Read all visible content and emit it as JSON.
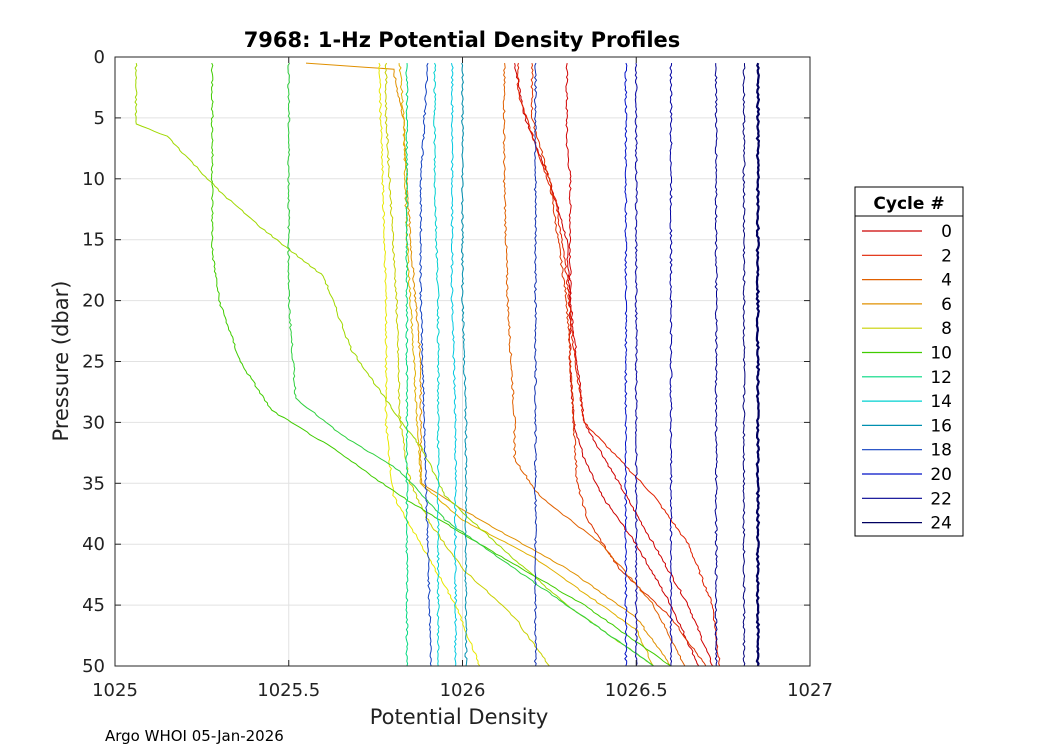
{
  "chart_data": {
    "type": "line",
    "title": "7968: 1-Hz Potential Density Profiles",
    "xlabel": "Potential Density",
    "ylabel": "Pressure (dbar)",
    "xlim": [
      1025,
      1027
    ],
    "ylim": [
      0,
      50
    ],
    "y_reversed": true,
    "grid": true,
    "xticks": [
      "1025",
      "1025.5",
      "1026",
      "1026.5",
      "1027"
    ],
    "yticks": [
      "0",
      "5",
      "10",
      "15",
      "20",
      "25",
      "30",
      "35",
      "40",
      "45",
      "50"
    ],
    "legend": {
      "title": "Cycle #",
      "placement": "right",
      "labels": [
        "0",
        "2",
        "4",
        "6",
        "8",
        "10",
        "12",
        "14",
        "16",
        "18",
        "20",
        "22",
        "24"
      ]
    },
    "series": [
      {
        "name": "0",
        "color": "#cc0000",
        "pressure": [
          0.5,
          5,
          10,
          15,
          20,
          25,
          30,
          33,
          36,
          40,
          45,
          50
        ],
        "density": [
          1026.15,
          1026.18,
          1026.25,
          1026.3,
          1026.31,
          1026.31,
          1026.32,
          1026.35,
          1026.4,
          1026.5,
          1026.6,
          1026.68
        ]
      },
      {
        "name": "",
        "color": "#d00000",
        "pressure": [
          0.5,
          3,
          7,
          10,
          15,
          20,
          25,
          30,
          35,
          40,
          45,
          50
        ],
        "density": [
          1026.3,
          1026.3,
          1026.3,
          1026.31,
          1026.31,
          1026.31,
          1026.33,
          1026.35,
          1026.45,
          1026.55,
          1026.65,
          1026.72
        ]
      },
      {
        "name": "2",
        "color": "#e02000",
        "pressure": [
          0.5,
          3,
          8,
          12,
          18,
          24,
          30,
          33,
          36,
          40,
          45,
          50
        ],
        "density": [
          1026.16,
          1026.16,
          1026.22,
          1026.27,
          1026.3,
          1026.32,
          1026.35,
          1026.45,
          1026.55,
          1026.65,
          1026.72,
          1026.74
        ]
      },
      {
        "name": "",
        "color": "#dd3300",
        "pressure": [
          0.5,
          5,
          10,
          20,
          30,
          35,
          38,
          42,
          46,
          50
        ],
        "density": [
          1026.2,
          1026.2,
          1026.25,
          1026.3,
          1026.32,
          1026.33,
          1026.36,
          1026.45,
          1026.6,
          1026.7
        ]
      },
      {
        "name": "4",
        "color": "#e06000",
        "pressure": [
          0.5,
          10,
          20,
          30,
          33,
          36,
          40,
          45,
          50
        ],
        "density": [
          1026.12,
          1026.12,
          1026.13,
          1026.15,
          1026.15,
          1026.22,
          1026.4,
          1026.55,
          1026.64
        ]
      },
      {
        "name": "6",
        "color": "#e09000",
        "pressure": [
          0.5,
          1,
          5,
          15,
          25,
          35,
          38,
          42,
          46,
          50
        ],
        "density": [
          1025.55,
          1025.8,
          1025.83,
          1025.85,
          1025.88,
          1025.88,
          1026.05,
          1026.3,
          1026.5,
          1026.6
        ]
      },
      {
        "name": "",
        "color": "#e0b000",
        "pressure": [
          0.5,
          5,
          15,
          25,
          35,
          38,
          41,
          44,
          47,
          50
        ],
        "density": [
          1025.82,
          1025.83,
          1025.84,
          1025.86,
          1025.88,
          1026.0,
          1026.2,
          1026.35,
          1026.5,
          1026.55
        ]
      },
      {
        "name": "8",
        "color": "#c8d000",
        "pressure": [
          0.5,
          5,
          10,
          15,
          20,
          30,
          35,
          38,
          42,
          46,
          50
        ],
        "density": [
          1025.78,
          1025.78,
          1025.79,
          1025.8,
          1025.81,
          1025.82,
          1025.85,
          1025.9,
          1026.0,
          1026.15,
          1026.25
        ]
      },
      {
        "name": "",
        "color": "#e8e800",
        "pressure": [
          0.5,
          10,
          20,
          30,
          36,
          40,
          45,
          50
        ],
        "density": [
          1025.76,
          1025.77,
          1025.78,
          1025.78,
          1025.8,
          1025.88,
          1025.98,
          1026.05
        ]
      },
      {
        "name": "",
        "color": "#a0d800",
        "pressure": [
          0.5,
          5.5,
          6.5,
          11,
          14,
          18,
          24,
          29,
          32,
          36,
          40,
          45,
          50
        ],
        "density": [
          1025.06,
          1025.06,
          1025.15,
          1025.3,
          1025.42,
          1025.6,
          1025.68,
          1025.8,
          1025.88,
          1025.95,
          1026.1,
          1026.3,
          1026.55
        ]
      },
      {
        "name": "10",
        "color": "#40cc00",
        "pressure": [
          0.5,
          16,
          20,
          25,
          29,
          32,
          36,
          40,
          45,
          50
        ],
        "density": [
          1025.28,
          1025.28,
          1025.3,
          1025.36,
          1025.45,
          1025.62,
          1025.82,
          1026.05,
          1026.35,
          1026.6
        ]
      },
      {
        "name": "",
        "color": "#30d040",
        "pressure": [
          0.5,
          10,
          20,
          28,
          31,
          34,
          38,
          42,
          46,
          50
        ],
        "density": [
          1025.5,
          1025.5,
          1025.5,
          1025.52,
          1025.65,
          1025.82,
          1025.95,
          1026.15,
          1026.35,
          1026.55
        ]
      },
      {
        "name": "12",
        "color": "#00d880",
        "pressure": [
          0.5,
          10,
          20,
          30,
          40,
          50
        ],
        "density": [
          1025.84,
          1025.84,
          1025.84,
          1025.84,
          1025.84,
          1025.84
        ]
      },
      {
        "name": "14",
        "color": "#00d0d0",
        "pressure": [
          0.5,
          10,
          20,
          30,
          40,
          50
        ],
        "density": [
          1025.92,
          1025.92,
          1025.93,
          1025.93,
          1025.93,
          1025.93
        ]
      },
      {
        "name": "",
        "color": "#00c8e0",
        "pressure": [
          0.5,
          10,
          20,
          30,
          40,
          50
        ],
        "density": [
          1025.97,
          1025.97,
          1025.97,
          1025.98,
          1025.98,
          1025.98
        ]
      },
      {
        "name": "16",
        "color": "#0090b0",
        "pressure": [
          0.5,
          10,
          20,
          30,
          40,
          50
        ],
        "density": [
          1026.0,
          1026.0,
          1026.0,
          1026.01,
          1026.01,
          1026.01
        ]
      },
      {
        "name": "18",
        "color": "#1040c0",
        "pressure": [
          0.5,
          10,
          20,
          30,
          40,
          50
        ],
        "density": [
          1025.9,
          1025.88,
          1025.88,
          1025.89,
          1025.9,
          1025.91
        ]
      },
      {
        "name": "",
        "color": "#1030b0",
        "pressure": [
          0.5,
          50
        ],
        "density": [
          1026.21,
          1026.21
        ]
      },
      {
        "name": "20",
        "color": "#0010c8",
        "pressure": [
          0.5,
          50
        ],
        "density": [
          1026.47,
          1026.47
        ]
      },
      {
        "name": "",
        "color": "#0a0aa8",
        "pressure": [
          0.5,
          50
        ],
        "density": [
          1026.5,
          1026.5
        ]
      },
      {
        "name": "",
        "color": "#0000a0",
        "pressure": [
          0.5,
          50
        ],
        "density": [
          1026.6,
          1026.6
        ]
      },
      {
        "name": "22",
        "color": "#000090",
        "pressure": [
          0.5,
          50
        ],
        "density": [
          1026.73,
          1026.73
        ]
      },
      {
        "name": "",
        "color": "#00007a",
        "pressure": [
          0.5,
          50
        ],
        "density": [
          1026.81,
          1026.81
        ]
      },
      {
        "name": "24",
        "color": "#000060",
        "pressure": [
          0.5,
          50
        ],
        "density": [
          1026.85,
          1026.85
        ]
      }
    ]
  },
  "footer": "Argo WHOI 05-Jan-2026"
}
